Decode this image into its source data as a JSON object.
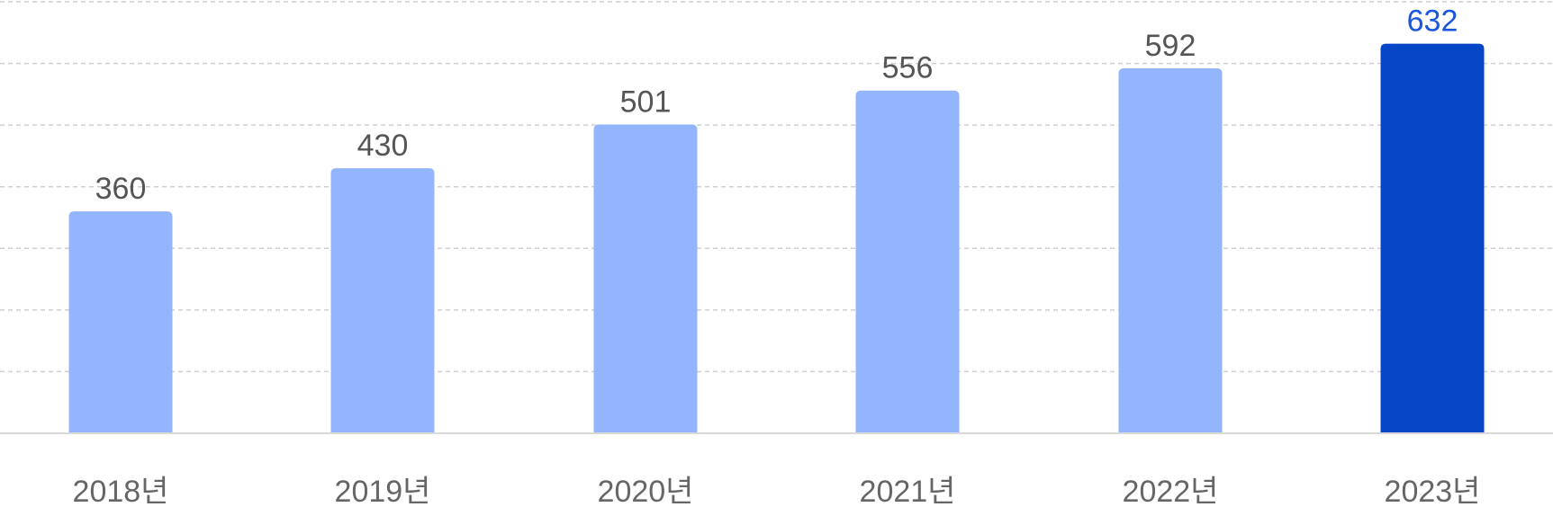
{
  "chart_data": {
    "type": "bar",
    "categories": [
      "2018년",
      "2019년",
      "2020년",
      "2021년",
      "2022년",
      "2023년"
    ],
    "values": [
      360,
      430,
      501,
      556,
      592,
      632
    ],
    "ylim": [
      0,
      700
    ],
    "grid": true,
    "highlight_index": 5,
    "colors": {
      "bar": "#93b5fd",
      "bar_highlight": "#0546c6",
      "label": "#555555",
      "label_highlight": "#1a56db",
      "tick": "#666666",
      "grid": "#cfcfcf",
      "baseline": "#d9d9d9"
    }
  }
}
